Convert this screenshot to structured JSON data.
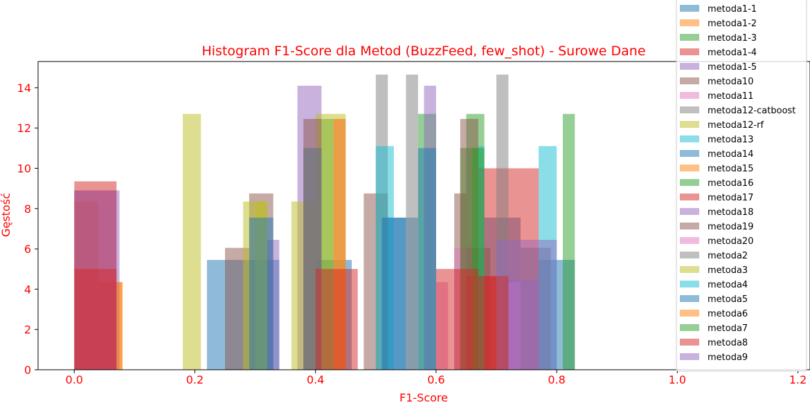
{
  "chart_data": {
    "type": "bar",
    "title": "Histogram F1-Score dla Metod (BuzzFeed, few_shot) - Surowe Dane",
    "xlabel": "F1-Score",
    "ylabel": "Gęstość",
    "xlim": [
      -0.06,
      1.22
    ],
    "ylim": [
      0,
      15.3
    ],
    "xticks": [
      "0.0",
      "0.2",
      "0.4",
      "0.6",
      "0.8",
      "1.0",
      "1.2"
    ],
    "yticks": [
      "0",
      "2",
      "4",
      "6",
      "8",
      "10",
      "12",
      "14"
    ],
    "grid": false,
    "legend_position": "upper-right, outside plot",
    "label_color": "#ff0000",
    "series": [
      {
        "name": "metoda1-1",
        "color": "#1f77b4",
        "bins": [
          [
            0.22,
            0.28,
            5.45
          ],
          [
            0.28,
            0.34,
            5.45
          ],
          [
            0.4,
            0.46,
            5.45
          ],
          [
            0.51,
            0.57,
            7.55
          ],
          [
            0.68,
            0.74,
            7.55
          ],
          [
            0.77,
            0.83,
            5.45
          ]
        ]
      },
      {
        "name": "metoda1-2",
        "color": "#ff7f0e",
        "bins": [
          [
            0.0,
            0.04,
            8.35
          ],
          [
            0.04,
            0.08,
            4.35
          ],
          [
            0.43,
            0.45,
            5.0
          ]
        ]
      },
      {
        "name": "metoda1-3",
        "color": "#2ca02c",
        "bins": [
          [
            0.41,
            0.43,
            12.45
          ],
          [
            0.57,
            0.6,
            12.7
          ],
          [
            0.65,
            0.68,
            12.7
          ],
          [
            0.81,
            0.83,
            12.7
          ]
        ]
      },
      {
        "name": "metoda1-4",
        "color": "#d62728",
        "bins": [
          [
            0.0,
            0.07,
            9.35
          ],
          [
            0.67,
            0.77,
            10.0
          ]
        ]
      },
      {
        "name": "metoda1-5",
        "color": "#9467bd",
        "bins": [
          [
            0.37,
            0.41,
            14.1
          ],
          [
            0.58,
            0.6,
            14.1
          ]
        ]
      },
      {
        "name": "metoda10",
        "color": "#8c564b",
        "bins": [
          [
            0.25,
            0.29,
            6.05
          ],
          [
            0.29,
            0.33,
            8.75
          ],
          [
            0.48,
            0.52,
            8.75
          ],
          [
            0.63,
            0.65,
            8.75
          ],
          [
            0.65,
            0.69,
            6.05
          ],
          [
            0.74,
            0.79,
            6.05
          ]
        ]
      },
      {
        "name": "metoda11",
        "color": "#e377c2",
        "bins": [
          [
            0.43,
            0.45,
            12.45
          ],
          [
            0.63,
            0.66,
            6.05
          ]
        ]
      },
      {
        "name": "metoda12-catboost",
        "color": "#7f7f7f",
        "bins": [
          [
            0.5,
            0.52,
            14.65
          ],
          [
            0.55,
            0.57,
            14.65
          ],
          [
            0.7,
            0.72,
            14.65
          ]
        ]
      },
      {
        "name": "metoda12-rf",
        "color": "#bcbd22",
        "bins": [
          [
            0.18,
            0.21,
            12.7
          ],
          [
            0.28,
            0.32,
            8.35
          ],
          [
            0.36,
            0.4,
            8.35
          ],
          [
            0.4,
            0.45,
            12.7
          ]
        ]
      },
      {
        "name": "metoda13",
        "color": "#17becf",
        "bins": [
          [
            0.5,
            0.53,
            11.1
          ],
          [
            0.77,
            0.8,
            11.1
          ]
        ]
      },
      {
        "name": "metoda14",
        "color": "#1f77b4",
        "bins": [
          [
            0.38,
            0.41,
            11.0
          ],
          [
            0.57,
            0.6,
            11.0
          ]
        ]
      },
      {
        "name": "metoda15",
        "color": "#ff7f0e",
        "bins": [
          [
            0.43,
            0.45,
            12.45
          ]
        ]
      },
      {
        "name": "metoda16",
        "color": "#2ca02c",
        "bins": [
          [
            0.64,
            0.67,
            11.0
          ]
        ]
      },
      {
        "name": "metoda17",
        "color": "#d62728",
        "bins": [
          [
            0.0,
            0.07,
            8.9
          ],
          [
            0.65,
            0.7,
            4.65
          ]
        ]
      },
      {
        "name": "metoda18",
        "color": "#9467bd",
        "bins": [
          [
            0.0,
            0.075,
            8.9
          ],
          [
            0.32,
            0.34,
            6.45
          ],
          [
            0.7,
            0.73,
            6.45
          ],
          [
            0.73,
            0.8,
            6.45
          ]
        ]
      },
      {
        "name": "metoda19",
        "color": "#8c564b",
        "bins": [
          [
            0.38,
            0.41,
            12.45
          ],
          [
            0.64,
            0.67,
            12.45
          ]
        ]
      },
      {
        "name": "metoda20",
        "color": "#e377c2",
        "bins": [
          [
            0.6,
            0.62,
            4.35
          ],
          [
            0.72,
            0.74,
            4.35
          ]
        ]
      },
      {
        "name": "metoda2",
        "color": "#7f7f7f",
        "bins": [
          [
            0.38,
            0.41,
            11.0
          ]
        ]
      },
      {
        "name": "metoda3",
        "color": "#bcbd22",
        "bins": [
          [
            0.3,
            0.32,
            8.35
          ]
        ]
      },
      {
        "name": "metoda4",
        "color": "#17becf",
        "bins": [
          [
            0.67,
            0.68,
            11.1
          ]
        ]
      },
      {
        "name": "metoda5",
        "color": "#1f77b4",
        "bins": [
          [
            0.29,
            0.33,
            7.55
          ],
          [
            0.51,
            0.55,
            7.55
          ]
        ]
      },
      {
        "name": "metoda6",
        "color": "#ff7f0e",
        "bins": [
          [
            0.07,
            0.08,
            4.35
          ]
        ]
      },
      {
        "name": "metoda7",
        "color": "#2ca02c",
        "bins": [
          [
            0.66,
            0.68,
            11.0
          ]
        ]
      },
      {
        "name": "metoda8",
        "color": "#d62728",
        "bins": [
          [
            0.0,
            0.07,
            5.0
          ],
          [
            0.4,
            0.47,
            5.0
          ],
          [
            0.6,
            0.67,
            5.0
          ],
          [
            0.67,
            0.72,
            4.65
          ]
        ]
      },
      {
        "name": "metoda9",
        "color": "#9467bd",
        "bins": [
          [
            0.72,
            0.77,
            4.45
          ]
        ]
      }
    ]
  }
}
